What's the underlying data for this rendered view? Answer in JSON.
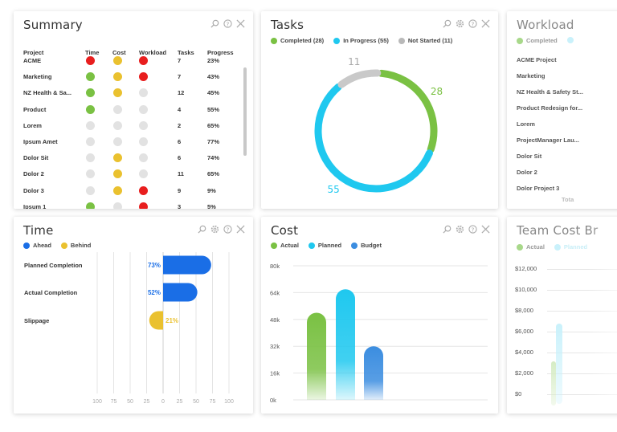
{
  "summary": {
    "title": "Summary",
    "columns": [
      "Project",
      "Time",
      "Cost",
      "Workload",
      "Tasks",
      "Progress"
    ],
    "rows": [
      {
        "project": "ACME",
        "time": "#e81e1e",
        "cost": "#eac12f",
        "workload": "#e81e1e",
        "tasks": "7",
        "progress": "23%"
      },
      {
        "project": "Marketing",
        "time": "#7ac143",
        "cost": "#eac12f",
        "workload": "#e81e1e",
        "tasks": "7",
        "progress": "43%"
      },
      {
        "project": "NZ Health & Sa...",
        "time": "#7ac143",
        "cost": "#eac12f",
        "workload": "#e2e2e2",
        "tasks": "12",
        "progress": "45%"
      },
      {
        "project": "Product",
        "time": "#7ac143",
        "cost": "#e2e2e2",
        "workload": "#e2e2e2",
        "tasks": "4",
        "progress": "55%"
      },
      {
        "project": "Lorem",
        "time": "#e2e2e2",
        "cost": "#e2e2e2",
        "workload": "#e2e2e2",
        "tasks": "2",
        "progress": "65%"
      },
      {
        "project": "Ipsum Amet",
        "time": "#e2e2e2",
        "cost": "#e2e2e2",
        "workload": "#e2e2e2",
        "tasks": "6",
        "progress": "77%"
      },
      {
        "project": "Dolor Sit",
        "time": "#e2e2e2",
        "cost": "#eac12f",
        "workload": "#e2e2e2",
        "tasks": "6",
        "progress": "74%"
      },
      {
        "project": "Dolor 2",
        "time": "#e2e2e2",
        "cost": "#eac12f",
        "workload": "#e2e2e2",
        "tasks": "11",
        "progress": "65%"
      },
      {
        "project": "Dolor 3",
        "time": "#e2e2e2",
        "cost": "#eac12f",
        "workload": "#e81e1e",
        "tasks": "9",
        "progress": "9%"
      },
      {
        "project": "Ipsum 1",
        "time": "#7ac143",
        "cost": "#e2e2e2",
        "workload": "#e81e1e",
        "tasks": "3",
        "progress": "5%"
      }
    ]
  },
  "tasks": {
    "title": "Tasks",
    "legend": [
      {
        "label": "Completed (28)",
        "color": "#7ac143"
      },
      {
        "label": "In Progress (55)",
        "color": "#1fc8ef"
      },
      {
        "label": "Not Started (11)",
        "color": "#b9b9b9"
      }
    ],
    "chart_data": {
      "type": "pie",
      "categories": [
        "Completed",
        "In Progress",
        "Not Started"
      ],
      "values": [
        28,
        55,
        11
      ],
      "colors": [
        "#7ac143",
        "#1fc8ef",
        "#c9c9c9"
      ],
      "labels": [
        "28",
        "55",
        "11"
      ]
    }
  },
  "workload": {
    "title": "Workload",
    "legend": [
      {
        "label": "Completed",
        "color": "#7ac143"
      }
    ],
    "rows": [
      "ACME Project",
      "Marketing",
      "NZ Health & Safety St...",
      "Product Redesign for...",
      "Lorem",
      "ProjectManager Lau...",
      "Dolor Sit",
      "Dolor 2",
      "Dolor Project 3"
    ],
    "footer": "Tota"
  },
  "time": {
    "title": "Time",
    "legend": [
      {
        "label": "Ahead",
        "color": "#1a6ee6"
      },
      {
        "label": "Behind",
        "color": "#eac12f"
      }
    ],
    "chart_data": {
      "type": "bar",
      "orientation": "horizontal",
      "categories": [
        "Planned Completion",
        "Actual Completion",
        "Slippage"
      ],
      "values": [
        73,
        52,
        -21
      ],
      "data_labels": [
        "73%",
        "52%",
        "21%"
      ],
      "colors": [
        "#1a6ee6",
        "#1a6ee6",
        "#eac12f"
      ],
      "xlim": [
        -100,
        100
      ],
      "xticks": [
        "100",
        "75",
        "50",
        "25",
        "0",
        "25",
        "50",
        "75",
        "100"
      ]
    }
  },
  "cost": {
    "title": "Cost",
    "legend": [
      {
        "label": "Actual",
        "color": "#7ac143"
      },
      {
        "label": "Planned",
        "color": "#1fc8ef"
      },
      {
        "label": "Budget",
        "color": "#3b8de0"
      }
    ],
    "chart_data": {
      "type": "bar",
      "categories": [
        "Actual",
        "Planned",
        "Budget"
      ],
      "values": [
        52000,
        66000,
        32000
      ],
      "colors": [
        "#7ac143",
        "#1fc8ef",
        "#3b8de0"
      ],
      "ylim": [
        0,
        80000
      ],
      "yticks": [
        "80k",
        "64k",
        "48k",
        "32k",
        "16k",
        "0k"
      ]
    }
  },
  "team_cost": {
    "title": "Team Cost Br",
    "legend": [
      {
        "label": "Actual",
        "color": "#7ac143"
      },
      {
        "label": "Planned",
        "color": "#1fc8ef"
      }
    ],
    "yticks": [
      "$12,000",
      "$10,000",
      "$8,000",
      "$6,000",
      "$4,000",
      "$2,000",
      "$0"
    ]
  }
}
